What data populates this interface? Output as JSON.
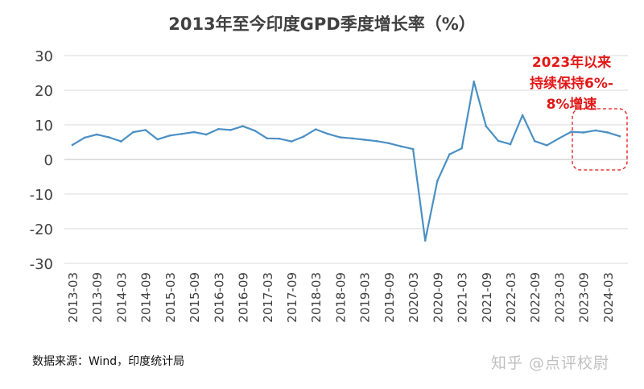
{
  "chart_data": {
    "type": "line",
    "title": "2013年至今印度GPD季度增长率（%）",
    "xlabel": "",
    "ylabel": "",
    "ylim": [
      -30,
      30
    ],
    "yticks": [
      30,
      20,
      10,
      0,
      -10,
      -20,
      -30
    ],
    "grid": true,
    "legend": "none",
    "line_color": "#4a90c4",
    "x": [
      "2013-03",
      "2013-06",
      "2013-09",
      "2013-12",
      "2014-03",
      "2014-06",
      "2014-09",
      "2014-12",
      "2015-03",
      "2015-06",
      "2015-09",
      "2015-12",
      "2016-03",
      "2016-06",
      "2016-09",
      "2016-12",
      "2017-03",
      "2017-06",
      "2017-09",
      "2017-12",
      "2018-03",
      "2018-06",
      "2018-09",
      "2018-12",
      "2019-03",
      "2019-06",
      "2019-09",
      "2019-12",
      "2020-03",
      "2020-06",
      "2020-09",
      "2020-12",
      "2021-03",
      "2021-06",
      "2021-09",
      "2021-12",
      "2022-03",
      "2022-06",
      "2022-09",
      "2022-12",
      "2023-03",
      "2023-06",
      "2023-09",
      "2023-12",
      "2024-03",
      "2024-06"
    ],
    "xtick_labels": [
      "2013-03",
      "2013-09",
      "2014-03",
      "2014-09",
      "2015-03",
      "2015-09",
      "2016-03",
      "2016-09",
      "2017-03",
      "2017-09",
      "2018-03",
      "2018-09",
      "2019-03",
      "2019-09",
      "2020-03",
      "2020-09",
      "2021-03",
      "2021-09",
      "2022-03",
      "2022-09",
      "2023-03",
      "2023-09",
      "2024-03"
    ],
    "series": [
      {
        "values": [
          4.2,
          6.3,
          7.2,
          6.4,
          5.2,
          7.9,
          8.5,
          5.8,
          6.9,
          7.4,
          7.9,
          7.2,
          8.8,
          8.5,
          9.6,
          8.3,
          6.1,
          6.0,
          5.2,
          6.6,
          8.7,
          7.4,
          6.4,
          6.1,
          5.7,
          5.3,
          4.7,
          3.8,
          3.0,
          -23.4,
          -6.2,
          1.5,
          3.2,
          22.5,
          9.6,
          5.4,
          4.4,
          12.8,
          5.3,
          4.1,
          6.1,
          8.0,
          7.8,
          8.4,
          7.8,
          6.7
        ]
      }
    ]
  },
  "callout": {
    "lines": [
      "2023年以来",
      "持续保持6%-",
      "8%增速"
    ],
    "color": "#e21818"
  },
  "source_note": "数据来源：Wind，印度统计局",
  "watermark": "知乎 @点评校尉"
}
